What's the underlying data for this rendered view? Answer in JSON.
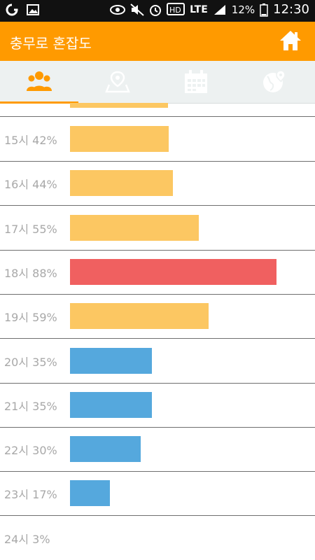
{
  "status_bar": {
    "battery": "12%",
    "time": "12:30",
    "network": "LTE"
  },
  "app_bar": {
    "title": "충무로 혼잡도",
    "home_icon": "home-icon"
  },
  "tabs": [
    {
      "icon": "people-icon",
      "active": true
    },
    {
      "icon": "map-pin-icon",
      "active": false
    },
    {
      "icon": "calendar-icon",
      "active": false
    },
    {
      "icon": "globe-pin-icon",
      "active": false
    }
  ],
  "colors": {
    "accent": "#ff9a00",
    "normal": "#fcc762",
    "high": "#f06060",
    "low": "#55a8dd"
  },
  "hours": [
    {
      "label": "15시 42%",
      "percent": 42,
      "level": "normal"
    },
    {
      "label": "16시 44%",
      "percent": 44,
      "level": "normal"
    },
    {
      "label": "17시 55%",
      "percent": 55,
      "level": "normal"
    },
    {
      "label": "18시 88%",
      "percent": 88,
      "level": "high"
    },
    {
      "label": "19시 59%",
      "percent": 59,
      "level": "normal"
    },
    {
      "label": "20시 35%",
      "percent": 35,
      "level": "low"
    },
    {
      "label": "21시 35%",
      "percent": 35,
      "level": "low"
    },
    {
      "label": "22시 30%",
      "percent": 30,
      "level": "low"
    },
    {
      "label": "23시 17%",
      "percent": 17,
      "level": "low"
    },
    {
      "label": "24시 3%",
      "percent": 3,
      "level": "low"
    }
  ]
}
